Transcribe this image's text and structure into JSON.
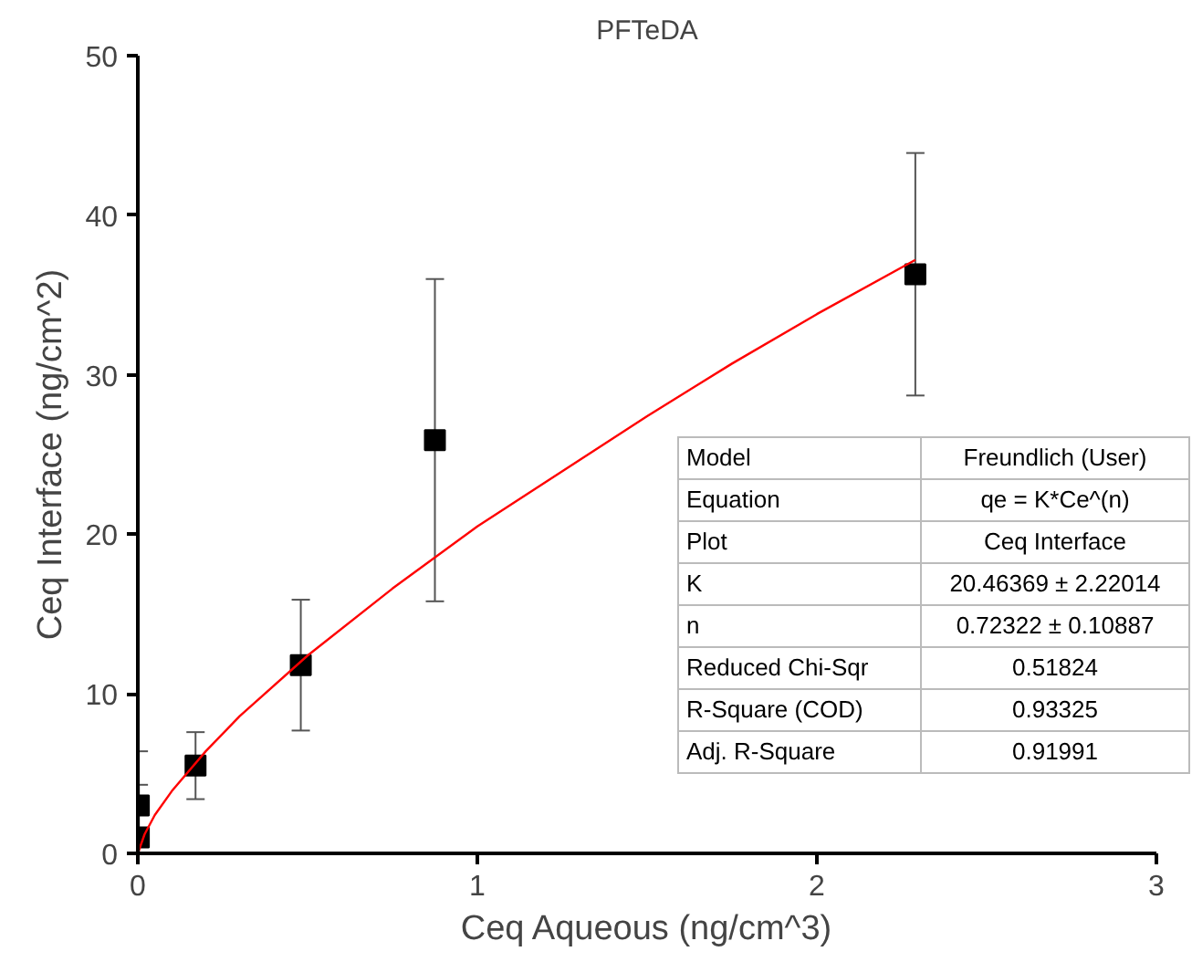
{
  "chart_data": {
    "type": "scatter",
    "title": "PFTeDA",
    "xlabel": "Ceq Aqueous (ng/cm^3)",
    "ylabel": "Ceq Interface (ng/cm^2)",
    "x": [
      0.003,
      0.003,
      0.17,
      0.48,
      0.875,
      2.29
    ],
    "series": [
      {
        "color": "#000000",
        "marker": "square",
        "values": [
          3.0,
          1.0,
          5.5,
          11.8,
          25.9,
          36.3
        ],
        "errors": [
          3.4,
          3.3,
          2.1,
          4.1,
          10.1,
          7.6
        ]
      },
      {
        "type": "line",
        "color": "#ff0000",
        "line_style": "solid",
        "x": [
          0,
          0.02,
          0.05,
          0.1,
          0.2,
          0.3,
          0.5,
          0.75,
          1.0,
          1.5,
          1.75,
          2.0,
          2.29
        ],
        "values": [
          0,
          1.2,
          2.4,
          3.9,
          6.4,
          8.6,
          12.4,
          16.6,
          20.5,
          27.4,
          30.7,
          33.8,
          37.2
        ]
      }
    ],
    "xlim": [
      0,
      3
    ],
    "ylim": [
      0,
      50
    ],
    "xticks": [
      0,
      1,
      2,
      3
    ],
    "yticks": [
      0,
      10,
      20,
      30,
      40,
      50
    ],
    "grid": false,
    "annotations": [
      "Model",
      "Freundlich (User)",
      "Equation",
      "qe = K*Ce^(n)",
      "Plot",
      "Ceq Interface",
      "K",
      "20.46369 ± 2.22014",
      "n",
      "0.72322 ± 0.10887",
      "Reduced Chi-Sqr",
      "0.51824",
      "R-Square (COD)",
      "0.93325",
      "Adj. R-Square",
      "0.91991"
    ]
  }
}
